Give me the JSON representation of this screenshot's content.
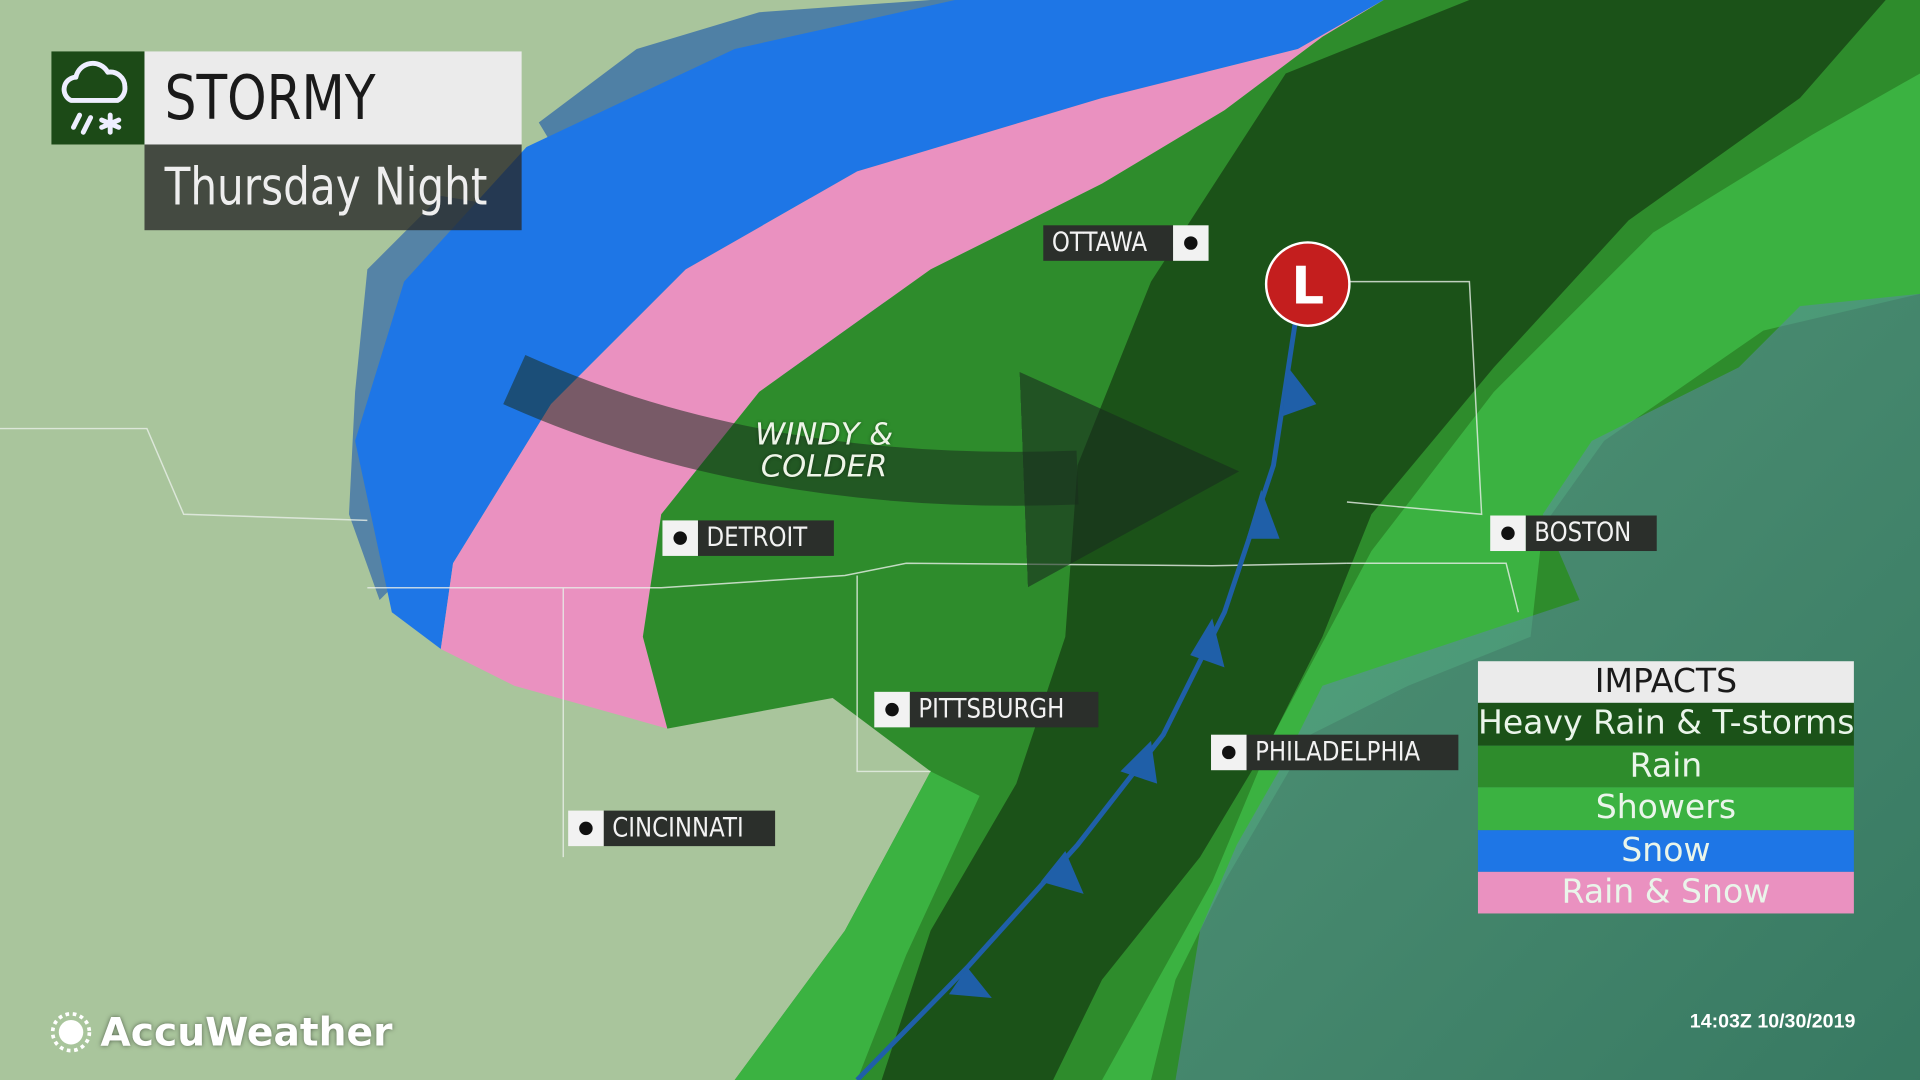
{
  "title": {
    "headline": "STORMY",
    "subtitle": "Thursday Night",
    "icon": "rain-snow-cloud-icon"
  },
  "annotation": {
    "line1": "WINDY &",
    "line2": "COLDER"
  },
  "low_pressure": {
    "label": "L",
    "color": "#c41e1e"
  },
  "cities": [
    {
      "name": "OTTAWA"
    },
    {
      "name": "DETROIT"
    },
    {
      "name": "BOSTON"
    },
    {
      "name": "PITTSBURGH"
    },
    {
      "name": "PHILADELPHIA"
    },
    {
      "name": "CINCINNATI"
    }
  ],
  "legend": {
    "title": "IMPACTS",
    "items": [
      {
        "label": "Heavy Rain & T-storms",
        "color": "#1b5218"
      },
      {
        "label": "Rain",
        "color": "#2e8c2c"
      },
      {
        "label": "Showers",
        "color": "#3bb241"
      },
      {
        "label": "Snow",
        "color": "#1e76e6"
      },
      {
        "label": "Rain & Snow",
        "color": "#ea91c0"
      }
    ]
  },
  "brand": {
    "name": "AccuWeather",
    "icon": "sun-logo-icon"
  },
  "timestamp": "14:03Z 10/30/2019"
}
